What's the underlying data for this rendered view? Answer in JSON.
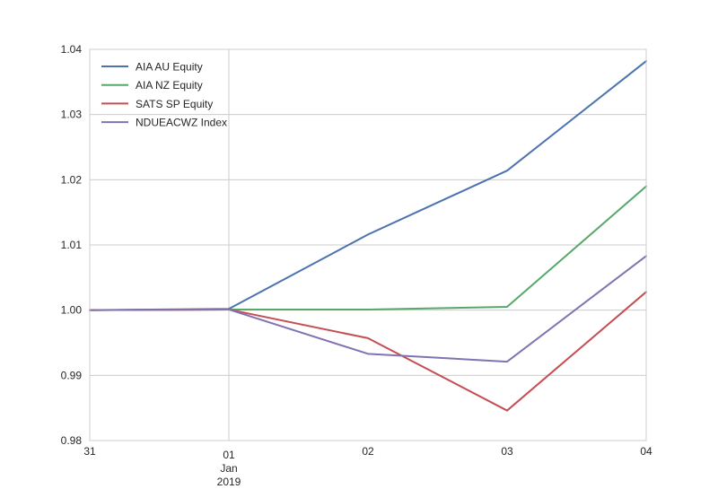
{
  "chart_data": {
    "type": "line",
    "title": "",
    "xlabel": "",
    "ylabel": "",
    "x": [
      "2018-12-31",
      "2019-01-01",
      "2019-01-02",
      "2019-01-03",
      "2019-01-04"
    ],
    "x_tick_labels": [
      {
        "lines": [
          "31"
        ]
      },
      {
        "lines": [
          "01",
          "Jan",
          "2019"
        ]
      },
      {
        "lines": [
          "02"
        ]
      },
      {
        "lines": [
          "03"
        ]
      },
      {
        "lines": [
          "04"
        ]
      }
    ],
    "ylim": [
      0.98,
      1.04
    ],
    "y_ticks": [
      "0.98",
      "0.99",
      "1.00",
      "1.01",
      "1.02",
      "1.03",
      "1.04"
    ],
    "grid": true,
    "legend_position": "top-left",
    "series": [
      {
        "name": "AIA AU Equity",
        "color": "#4c72b0",
        "values": [
          1.0,
          1.0002,
          1.0116,
          1.0214,
          1.0382
        ]
      },
      {
        "name": "AIA NZ Equity",
        "color": "#55a868",
        "values": [
          1.0,
          1.0001,
          1.0001,
          1.0005,
          1.019
        ]
      },
      {
        "name": "SATS SP Equity",
        "color": "#c44e52",
        "values": [
          1.0,
          1.0001,
          0.9957,
          0.9846,
          1.0028
        ]
      },
      {
        "name": "NDUEACWZ Index",
        "color": "#8172b2",
        "values": [
          1.0,
          1.0001,
          0.9933,
          0.9921,
          1.0083
        ]
      }
    ]
  }
}
